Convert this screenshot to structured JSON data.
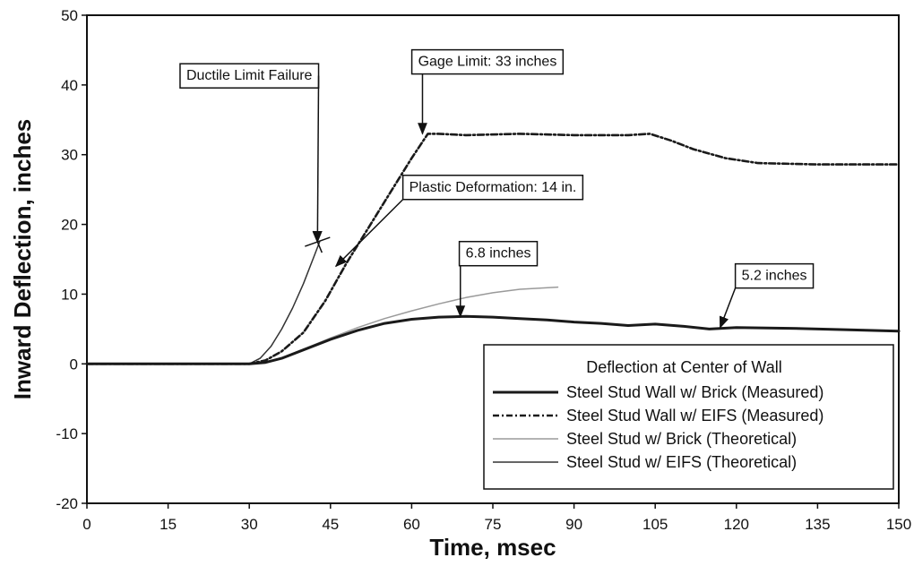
{
  "chart_data": {
    "type": "line",
    "title": "",
    "xlabel": "Time, msec",
    "ylabel": "Inward Deflection, inches",
    "xlim": [
      0,
      150
    ],
    "ylim": [
      -20,
      50
    ],
    "x_ticks": [
      "0",
      "15",
      "30",
      "45",
      "60",
      "75",
      "90",
      "105",
      "120",
      "135",
      "150"
    ],
    "y_ticks": [
      "-20",
      "-10",
      "0",
      "10",
      "20",
      "30",
      "40",
      "50"
    ],
    "grid": false,
    "legend": {
      "title": "Deflection at Center of Wall",
      "placement": "bottom-right"
    },
    "series": [
      {
        "name": "Steel Stud Wall w/ Brick (Measured)",
        "style": "thick-solid",
        "color": "#1a1a1a",
        "x": [
          0,
          30,
          33,
          36,
          40,
          45,
          50,
          55,
          60,
          65,
          70,
          75,
          80,
          85,
          90,
          95,
          100,
          105,
          110,
          115,
          120,
          130,
          140,
          150
        ],
        "y": [
          0,
          0,
          0.2,
          0.8,
          2.0,
          3.5,
          4.8,
          5.8,
          6.4,
          6.7,
          6.8,
          6.7,
          6.5,
          6.3,
          6.0,
          5.8,
          5.5,
          5.7,
          5.4,
          5.0,
          5.2,
          5.1,
          4.9,
          4.7
        ]
      },
      {
        "name": "Steel Stud Wall w/ EIFS (Measured)",
        "style": "thick-dashed",
        "color": "#1a1a1a",
        "x": [
          0,
          30,
          33,
          36,
          40,
          44,
          48,
          52,
          56,
          60,
          63,
          65,
          70,
          80,
          90,
          100,
          104,
          108,
          112,
          118,
          124,
          135,
          150
        ],
        "y": [
          0,
          0,
          0.5,
          1.8,
          4.5,
          9.0,
          14.5,
          19.5,
          24.5,
          29.5,
          33.0,
          33.0,
          32.8,
          33.0,
          32.8,
          32.8,
          33.0,
          32.0,
          30.8,
          29.5,
          28.8,
          28.6,
          28.6
        ]
      },
      {
        "name": "Steel Stud w/ Brick (Theoretical)",
        "style": "thin-solid",
        "color": "#9a9a9a",
        "x": [
          0,
          30,
          33,
          36,
          40,
          45,
          50,
          55,
          60,
          65,
          70,
          75,
          80,
          87
        ],
        "y": [
          0,
          0,
          0.2,
          0.9,
          2.1,
          3.7,
          5.2,
          6.5,
          7.6,
          8.6,
          9.5,
          10.2,
          10.7,
          11.0
        ]
      },
      {
        "name": "Steel Stud w/ EIFS (Theoretical)",
        "style": "thin-solid",
        "color": "#333333",
        "x": [
          0,
          30,
          32,
          34,
          36,
          38,
          40,
          42,
          43
        ],
        "y": [
          0,
          0,
          0.8,
          2.5,
          5.0,
          8.0,
          11.5,
          15.5,
          17.5
        ]
      }
    ],
    "annotations": [
      {
        "text": "Ductile Limit Failure",
        "target_x": 42.6,
        "target_y": 17.5,
        "label_x": 30,
        "label_y": 41.5,
        "marker": "x"
      },
      {
        "text": "Gage Limit: 33 inches",
        "target_x": 62,
        "target_y": 33.0,
        "label_x": 74,
        "label_y": 43.5
      },
      {
        "text": "Plastic Deformation: 14 in.",
        "target_x": 46,
        "target_y": 14.0,
        "label_x": 75,
        "label_y": 25.5
      },
      {
        "text": "6.8 inches",
        "target_x": 69,
        "target_y": 6.8,
        "label_x": 76,
        "label_y": 16.0
      },
      {
        "text": "5.2 inches",
        "target_x": 117,
        "target_y": 5.2,
        "label_x": 127,
        "label_y": 12.8
      }
    ]
  }
}
